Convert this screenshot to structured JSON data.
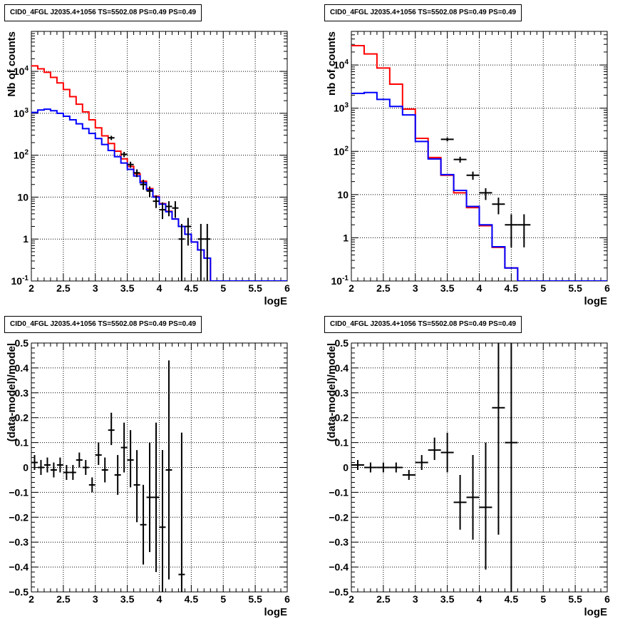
{
  "page": {
    "background": "#ffffff"
  },
  "colors": {
    "data": "#000000",
    "total_model": "#ff0000",
    "source_model": "#0000ff"
  },
  "chart_data": [
    {
      "type": "line",
      "title": "CID0_4FGL J2035.4+1056 TS=5502.08 PS=0.49 PS=0.49",
      "xlabel": "logE",
      "ylabel": "Nb of counts",
      "xlim": [
        2,
        6
      ],
      "ylim": [
        0.1,
        90000
      ],
      "log_y": true,
      "grid": true,
      "x_ticks": [
        "2",
        "2.5",
        "3",
        "3.5",
        "4",
        "4.5",
        "5",
        "5.5",
        "6"
      ],
      "y_ticks": [
        "10^-1",
        "1",
        "10",
        "10^2",
        "10^3",
        "10^4"
      ],
      "bin_edges": [
        2.0,
        2.1,
        2.2,
        2.3,
        2.4,
        2.5,
        2.6,
        2.7,
        2.8,
        2.9,
        3.0,
        3.1,
        3.2,
        3.3,
        3.4,
        3.5,
        3.6,
        3.7,
        3.8,
        3.9,
        4.0,
        4.1,
        4.2,
        4.3,
        4.4,
        4.5,
        4.6,
        4.7,
        4.8,
        4.9,
        5.0,
        5.1,
        5.2,
        5.3,
        5.4,
        5.5,
        5.6,
        5.7,
        5.8,
        5.9,
        6.0
      ],
      "series": [
        {
          "name": "",
          "role": "total_model",
          "color": "#ff0000",
          "values": [
            13500,
            11500,
            9500,
            7200,
            5300,
            3700,
            2500,
            1650,
            1080,
            700,
            450,
            290,
            190,
            125,
            82,
            54,
            36,
            24,
            16,
            10.5,
            7,
            4.6,
            3,
            2,
            1.3,
            0.85,
            0.55,
            0.35,
            0.1,
            0.1,
            0.1,
            0.1,
            0.1,
            0.1,
            0.1,
            0.1,
            0.1,
            0.1,
            0.1,
            0.1
          ]
        },
        {
          "name": "",
          "role": "source_model",
          "color": "#0000ff",
          "values": [
            1050,
            1200,
            1250,
            1150,
            1000,
            850,
            700,
            560,
            430,
            330,
            250,
            180,
            130,
            92,
            65,
            46,
            32,
            22,
            15,
            10,
            6.8,
            4.5,
            3,
            2,
            1.3,
            0.85,
            0.55,
            0.35,
            0.1,
            0.1,
            0.1,
            0.1,
            0.1,
            0.1,
            0.1,
            0.1,
            0.1,
            0.1,
            0.1,
            0.1
          ]
        }
      ],
      "points": [
        {
          "x": 3.25,
          "y": 260,
          "ylo": 230,
          "yhi": 290
        },
        {
          "x": 3.45,
          "y": 105,
          "ylo": 90,
          "yhi": 120
        },
        {
          "x": 3.55,
          "y": 60,
          "ylo": 50,
          "yhi": 70
        },
        {
          "x": 3.65,
          "y": 38,
          "ylo": 30,
          "yhi": 46
        },
        {
          "x": 3.75,
          "y": 20,
          "ylo": 15,
          "yhi": 26
        },
        {
          "x": 3.85,
          "y": 14,
          "ylo": 10,
          "yhi": 18
        },
        {
          "x": 3.95,
          "y": 8,
          "ylo": 5.5,
          "yhi": 11
        },
        {
          "x": 4.05,
          "y": 5,
          "ylo": 3,
          "yhi": 7.5
        },
        {
          "x": 4.15,
          "y": 6,
          "ylo": 3.5,
          "yhi": 8
        },
        {
          "x": 4.25,
          "y": 5.5,
          "ylo": 3.2,
          "yhi": 8
        },
        {
          "x": 4.35,
          "y": 1,
          "ylo": 0.1,
          "yhi": 2.3
        },
        {
          "x": 4.45,
          "y": 2,
          "ylo": 0.7,
          "yhi": 3.2
        },
        {
          "x": 4.65,
          "y": 1,
          "ylo": 0.1,
          "yhi": 2.3
        },
        {
          "x": 4.75,
          "y": 1,
          "ylo": 0.1,
          "yhi": 2.3
        }
      ]
    },
    {
      "type": "line",
      "title": "CID0_4FGL J2035.4+1056 TS=5502.08 PS=0.49 PS=0.49",
      "xlabel": "logE",
      "ylabel": "nb of counts",
      "xlim": [
        2,
        6
      ],
      "ylim": [
        0.1,
        60000
      ],
      "log_y": true,
      "grid": true,
      "x_ticks": [
        "2",
        "2.5",
        "3",
        "3.5",
        "4",
        "4.5",
        "5",
        "5.5",
        "6"
      ],
      "y_ticks": [
        "10^-1",
        "1",
        "10",
        "10^2",
        "10^3",
        "10^4"
      ],
      "bin_edges": [
        2.0,
        2.2,
        2.4,
        2.6,
        2.8,
        3.0,
        3.2,
        3.4,
        3.6,
        3.8,
        4.0,
        4.2,
        4.4,
        4.6,
        4.8,
        5.0,
        5.2,
        5.4,
        5.6,
        5.8,
        6.0
      ],
      "series": [
        {
          "name": "",
          "role": "total_model",
          "color": "#ff0000",
          "values": [
            28000,
            18000,
            8500,
            3600,
            950,
            200,
            72,
            28,
            11,
            5,
            1.9,
            0.6,
            0.2,
            0.1,
            0.1,
            0.1,
            0.1,
            0.1,
            0.1,
            0.1
          ]
        },
        {
          "name": "",
          "role": "source_model",
          "color": "#0000ff",
          "values": [
            2200,
            2300,
            1600,
            1100,
            700,
            170,
            67,
            29,
            12.5,
            5.3,
            2,
            0.62,
            0.2,
            0.1,
            0.1,
            0.1,
            0.1,
            0.1,
            0.1,
            0.1
          ]
        }
      ],
      "points": [
        {
          "x": 3.5,
          "y": 190,
          "ylo": 170,
          "yhi": 210
        },
        {
          "x": 3.7,
          "y": 65,
          "ylo": 55,
          "yhi": 75
        },
        {
          "x": 3.9,
          "y": 28,
          "ylo": 22,
          "yhi": 34
        },
        {
          "x": 4.1,
          "y": 11,
          "ylo": 7.5,
          "yhi": 14
        },
        {
          "x": 4.3,
          "y": 6,
          "ylo": 3.5,
          "yhi": 8.5
        },
        {
          "x": 4.5,
          "y": 2,
          "ylo": 0.6,
          "yhi": 3.5
        },
        {
          "x": 4.7,
          "y": 2,
          "ylo": 0.6,
          "yhi": 3.5
        }
      ]
    },
    {
      "type": "scatter",
      "title": "CID0_4FGL J2035.4+1056 TS=5502.08 PS=0.49 PS=0.49",
      "xlabel": "logE",
      "ylabel": "(data-model)/model",
      "xlim": [
        2,
        6
      ],
      "ylim": [
        -0.5,
        0.5
      ],
      "grid": true,
      "x_ticks": [
        "2",
        "2.5",
        "3",
        "3.5",
        "4",
        "4.5",
        "5",
        "5.5",
        "6"
      ],
      "y_ticks": [
        "−0.5",
        "−0.4",
        "−0.3",
        "−0.2",
        "−0.1",
        "0",
        "0.1",
        "0.2",
        "0.3",
        "0.4",
        "0.5"
      ],
      "xerr": 0.05,
      "points": [
        {
          "x": 2.05,
          "y": 0.02,
          "ylo": -0.01,
          "yhi": 0.05
        },
        {
          "x": 2.15,
          "y": 0.0,
          "ylo": -0.03,
          "yhi": 0.03
        },
        {
          "x": 2.25,
          "y": 0.01,
          "ylo": -0.02,
          "yhi": 0.04
        },
        {
          "x": 2.35,
          "y": -0.01,
          "ylo": -0.04,
          "yhi": 0.02
        },
        {
          "x": 2.45,
          "y": 0.01,
          "ylo": -0.02,
          "yhi": 0.04
        },
        {
          "x": 2.55,
          "y": -0.02,
          "ylo": -0.05,
          "yhi": 0.01
        },
        {
          "x": 2.65,
          "y": -0.02,
          "ylo": -0.05,
          "yhi": 0.01
        },
        {
          "x": 2.75,
          "y": 0.03,
          "ylo": 0.0,
          "yhi": 0.06
        },
        {
          "x": 2.85,
          "y": 0.0,
          "ylo": -0.03,
          "yhi": 0.03
        },
        {
          "x": 2.95,
          "y": -0.07,
          "ylo": -0.1,
          "yhi": -0.04
        },
        {
          "x": 3.05,
          "y": 0.05,
          "ylo": 0.01,
          "yhi": 0.1
        },
        {
          "x": 3.15,
          "y": -0.01,
          "ylo": -0.06,
          "yhi": 0.04
        },
        {
          "x": 3.25,
          "y": 0.15,
          "ylo": 0.09,
          "yhi": 0.22
        },
        {
          "x": 3.35,
          "y": -0.03,
          "ylo": -0.11,
          "yhi": 0.05
        },
        {
          "x": 3.45,
          "y": 0.08,
          "ylo": -0.02,
          "yhi": 0.18
        },
        {
          "x": 3.55,
          "y": 0.03,
          "ylo": -0.08,
          "yhi": 0.15
        },
        {
          "x": 3.65,
          "y": -0.07,
          "ylo": -0.22,
          "yhi": 0.07
        },
        {
          "x": 3.75,
          "y": -0.23,
          "ylo": -0.39,
          "yhi": -0.07
        },
        {
          "x": 3.85,
          "y": -0.12,
          "ylo": -0.34,
          "yhi": 0.1
        },
        {
          "x": 3.95,
          "y": -0.12,
          "ylo": -0.42,
          "yhi": 0.18
        },
        {
          "x": 4.05,
          "y": -0.24,
          "ylo": -0.5,
          "yhi": 0.07
        },
        {
          "x": 4.15,
          "y": -0.01,
          "ylo": -0.45,
          "yhi": 0.43
        },
        {
          "x": 4.35,
          "y": -0.43,
          "ylo": -0.5,
          "yhi": 0.14
        }
      ]
    },
    {
      "type": "scatter",
      "title": "CID0_4FGL J2035.4+1056 TS=5502.08 PS=0.49 PS=0.49",
      "xlabel": "logE",
      "ylabel": "(data-model)/model",
      "xlim": [
        2,
        6
      ],
      "ylim": [
        -0.5,
        0.5
      ],
      "grid": true,
      "x_ticks": [
        "2",
        "2.5",
        "3",
        "3.5",
        "4",
        "4.5",
        "5",
        "5.5",
        "6"
      ],
      "y_ticks": [
        "−0.5",
        "−0.4",
        "−0.3",
        "−0.2",
        "−0.1",
        "0",
        "0.1",
        "0.2",
        "0.3",
        "0.4",
        "0.5"
      ],
      "xerr": 0.1,
      "points": [
        {
          "x": 2.1,
          "y": 0.01,
          "ylo": -0.01,
          "yhi": 0.03
        },
        {
          "x": 2.3,
          "y": 0.0,
          "ylo": -0.02,
          "yhi": 0.02
        },
        {
          "x": 2.5,
          "y": 0.0,
          "ylo": -0.02,
          "yhi": 0.02
        },
        {
          "x": 2.7,
          "y": 0.0,
          "ylo": -0.02,
          "yhi": 0.02
        },
        {
          "x": 2.9,
          "y": -0.03,
          "ylo": -0.05,
          "yhi": -0.01
        },
        {
          "x": 3.1,
          "y": 0.02,
          "ylo": -0.01,
          "yhi": 0.05
        },
        {
          "x": 3.3,
          "y": 0.07,
          "ylo": 0.03,
          "yhi": 0.12
        },
        {
          "x": 3.5,
          "y": 0.06,
          "ylo": -0.02,
          "yhi": 0.14
        },
        {
          "x": 3.7,
          "y": -0.14,
          "ylo": -0.25,
          "yhi": -0.03
        },
        {
          "x": 3.9,
          "y": -0.12,
          "ylo": -0.29,
          "yhi": 0.05
        },
        {
          "x": 4.1,
          "y": -0.16,
          "ylo": -0.41,
          "yhi": 0.1
        },
        {
          "x": 4.3,
          "y": 0.24,
          "ylo": -0.27,
          "yhi": 0.5
        },
        {
          "x": 4.5,
          "y": 0.1,
          "ylo": -0.5,
          "yhi": 0.5
        }
      ]
    }
  ]
}
